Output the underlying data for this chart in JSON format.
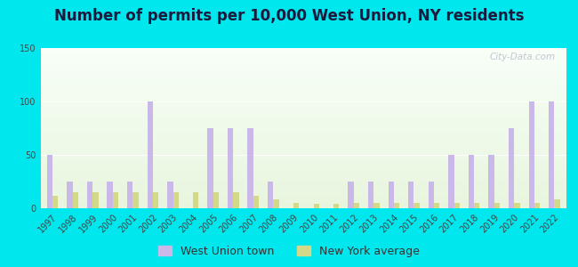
{
  "title": "Number of permits per 10,000 West Union, NY residents",
  "years": [
    1997,
    1998,
    1999,
    2000,
    2001,
    2002,
    2003,
    2004,
    2005,
    2006,
    2007,
    2008,
    2009,
    2010,
    2011,
    2012,
    2013,
    2014,
    2015,
    2016,
    2017,
    2018,
    2019,
    2020,
    2021,
    2022
  ],
  "west_union": [
    50,
    25,
    25,
    25,
    25,
    100,
    25,
    0,
    75,
    75,
    75,
    25,
    0,
    0,
    0,
    25,
    25,
    25,
    25,
    25,
    50,
    50,
    50,
    75,
    100,
    100
  ],
  "ny_average": [
    12,
    15,
    15,
    15,
    15,
    15,
    15,
    15,
    15,
    15,
    12,
    8,
    5,
    4,
    4,
    5,
    5,
    5,
    5,
    5,
    5,
    5,
    5,
    5,
    5,
    8
  ],
  "west_union_color": "#c9b8e8",
  "ny_average_color": "#d4d98a",
  "background_outer": "#00e8ee",
  "ylim": [
    0,
    150
  ],
  "yticks": [
    0,
    50,
    100,
    150
  ],
  "bar_width": 0.28,
  "title_fontsize": 12,
  "tick_fontsize": 7,
  "legend_fontsize": 9,
  "watermark": "City-Data.com"
}
